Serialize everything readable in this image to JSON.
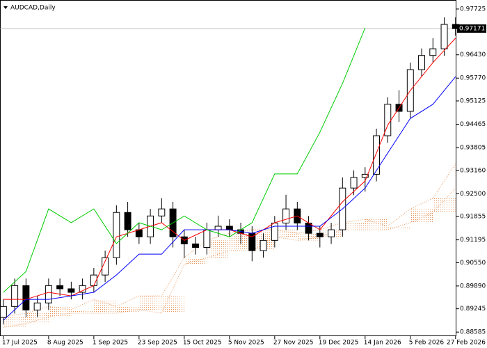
{
  "chart_data": {
    "type": "candlestick",
    "title": "AUDCAD,Daily",
    "x": [
      0,
      4,
      8,
      12,
      16,
      20,
      24,
      28,
      32,
      36,
      40,
      44,
      48,
      52,
      56,
      60,
      64,
      68,
      72,
      76,
      80,
      84,
      88,
      92,
      96,
      100,
      104,
      108,
      112,
      116,
      120,
      124,
      128,
      132,
      136,
      140,
      144,
      148,
      152,
      156,
      160
    ],
    "open": [
      0.89,
      0.8931,
      0.899,
      0.8921,
      0.8941,
      0.899,
      0.8981,
      0.8971,
      0.899,
      0.902,
      0.9069,
      0.9197,
      0.9148,
      0.9128,
      0.9187,
      0.9207,
      0.9128,
      0.9108,
      0.9098,
      0.9148,
      0.9158,
      0.9148,
      0.9138,
      0.9089,
      0.9118,
      0.9167,
      0.9207,
      0.9167,
      0.9138,
      0.9128,
      0.9148,
      0.9266,
      0.9296,
      0.9305,
      0.9414,
      0.9503,
      0.9483,
      0.9601,
      0.9641,
      0.966,
      0.9729
    ],
    "high": [
      0.8951,
      0.901,
      0.901,
      0.8961,
      0.901,
      0.901,
      0.9001,
      0.901,
      0.904,
      0.9089,
      0.9217,
      0.9227,
      0.9168,
      0.9207,
      0.9237,
      0.9227,
      0.9148,
      0.9128,
      0.9168,
      0.9188,
      0.9178,
      0.9168,
      0.9158,
      0.9138,
      0.9187,
      0.9247,
      0.9227,
      0.9187,
      0.9158,
      0.9168,
      0.9296,
      0.9316,
      0.9325,
      0.9434,
      0.9523,
      0.9543,
      0.9621,
      0.9661,
      0.969,
      0.9749,
      0.9749
    ],
    "low": [
      0.888,
      0.8911,
      0.8901,
      0.8901,
      0.8921,
      0.8961,
      0.8951,
      0.8951,
      0.897,
      0.9,
      0.9049,
      0.9128,
      0.9108,
      0.9108,
      0.9167,
      0.9098,
      0.9068,
      0.9078,
      0.9078,
      0.9128,
      0.9128,
      0.9108,
      0.9059,
      0.9069,
      0.9098,
      0.9147,
      0.9147,
      0.9118,
      0.9098,
      0.9108,
      0.9128,
      0.9246,
      0.9256,
      0.9285,
      0.9394,
      0.9453,
      0.9463,
      0.9581,
      0.9621,
      0.964,
      0.9697
    ],
    "close": [
      0.8931,
      0.899,
      0.8921,
      0.8941,
      0.899,
      0.8981,
      0.8971,
      0.899,
      0.902,
      0.9069,
      0.9197,
      0.9148,
      0.9128,
      0.9187,
      0.9207,
      0.9128,
      0.9108,
      0.9098,
      0.9148,
      0.9158,
      0.9148,
      0.9138,
      0.9089,
      0.9118,
      0.9167,
      0.9207,
      0.9167,
      0.9138,
      0.9128,
      0.9148,
      0.9266,
      0.9296,
      0.9305,
      0.9414,
      0.9503,
      0.9483,
      0.9601,
      0.9641,
      0.966,
      0.9729,
      0.9717
    ],
    "line_x": [
      0,
      8,
      16,
      24,
      32,
      40,
      48,
      56,
      64,
      72,
      80,
      88,
      96,
      104,
      112,
      120,
      128,
      136,
      144,
      152,
      160
    ],
    "lines": [
      {
        "color": "#ff0000",
        "values": [
          0.8951,
          0.8951,
          0.8971,
          0.8961,
          0.899,
          0.9128,
          0.9148,
          0.9168,
          0.9118,
          0.9148,
          0.9148,
          0.9128,
          0.9168,
          0.9187,
          0.9148,
          0.9227,
          0.9286,
          0.9444,
          0.9542,
          0.9621,
          0.969
        ]
      },
      {
        "color": "#0000ff",
        "values": [
          0.8892,
          0.8951,
          0.8951,
          0.8961,
          0.8971,
          0.902,
          0.9079,
          0.9079,
          0.9148,
          0.9148,
          0.9148,
          0.9138,
          0.9158,
          0.9158,
          0.9158,
          0.9207,
          0.9266,
          0.9365,
          0.9463,
          0.9503,
          0.9581
        ]
      },
      {
        "color": "#00cc00",
        "values": [
          0.8971,
          0.903,
          0.9207,
          0.9168,
          0.9207,
          0.9109,
          0.9168,
          0.9148,
          0.9187,
          0.9148,
          0.9128,
          0.9168,
          0.9306,
          0.9306,
          0.9424,
          0.9562,
          0.9719,
          null,
          null,
          null,
          null
        ]
      }
    ],
    "cloud": {
      "color": "#e8955a",
      "upper": [
        0.8902,
        0.8912,
        0.8931,
        0.8922,
        0.8951,
        0.8931,
        0.8961,
        0.8961,
        0.9069,
        0.9118,
        0.9138,
        0.9148,
        0.9148,
        0.9138,
        0.9148,
        0.9168,
        0.9178,
        0.9158,
        0.9207,
        0.9237,
        0.9335
      ],
      "lower": [
        0.8872,
        0.8882,
        0.8902,
        0.8912,
        0.8912,
        0.8912,
        0.8922,
        0.8912,
        0.905,
        0.9069,
        0.9089,
        0.9089,
        0.9128,
        0.9118,
        0.9128,
        0.9148,
        0.9148,
        0.9148,
        0.9168,
        0.9197,
        0.9266
      ]
    },
    "last_price": 0.97171,
    "xlim": [
      -1.2,
      160.3
    ],
    "ylim": [
      0.8847,
      0.9798
    ],
    "xticks": [
      {
        "value": 0,
        "label": "17 Jul 2025"
      },
      {
        "value": 16,
        "label": "8 Aug 2025"
      },
      {
        "value": 32,
        "label": "1 Sep 2025"
      },
      {
        "value": 48,
        "label": "23 Sep 2025"
      },
      {
        "value": 64,
        "label": "15 Oct 2025"
      },
      {
        "value": 80,
        "label": "5 Nov 2025"
      },
      {
        "value": 96,
        "label": "27 Nov 2025"
      },
      {
        "value": 112,
        "label": "19 Dec 2025"
      },
      {
        "value": 128,
        "label": "14 Jan 2026"
      },
      {
        "value": 144,
        "label": "5 Feb 2026"
      },
      {
        "value": 160,
        "label": "27 Feb 2026"
      }
    ],
    "yticks": [
      0.97725,
      {
        "value": 0.9643,
        "label": "0.96430"
      },
      {
        "value": 0.9577,
        "label": "0.95770"
      },
      0.95125,
      0.94465,
      {
        "value": 0.93805,
        "label": "0.93805"
      },
      {
        "value": 0.9316,
        "label": "0.93160"
      },
      {
        "value": 0.925,
        "label": "0.92500"
      },
      0.91855,
      0.91195,
      {
        "value": 0.9055,
        "label": "0.90550"
      },
      {
        "value": 0.8989,
        "label": "0.89890"
      },
      0.89245,
      0.88585
    ]
  }
}
